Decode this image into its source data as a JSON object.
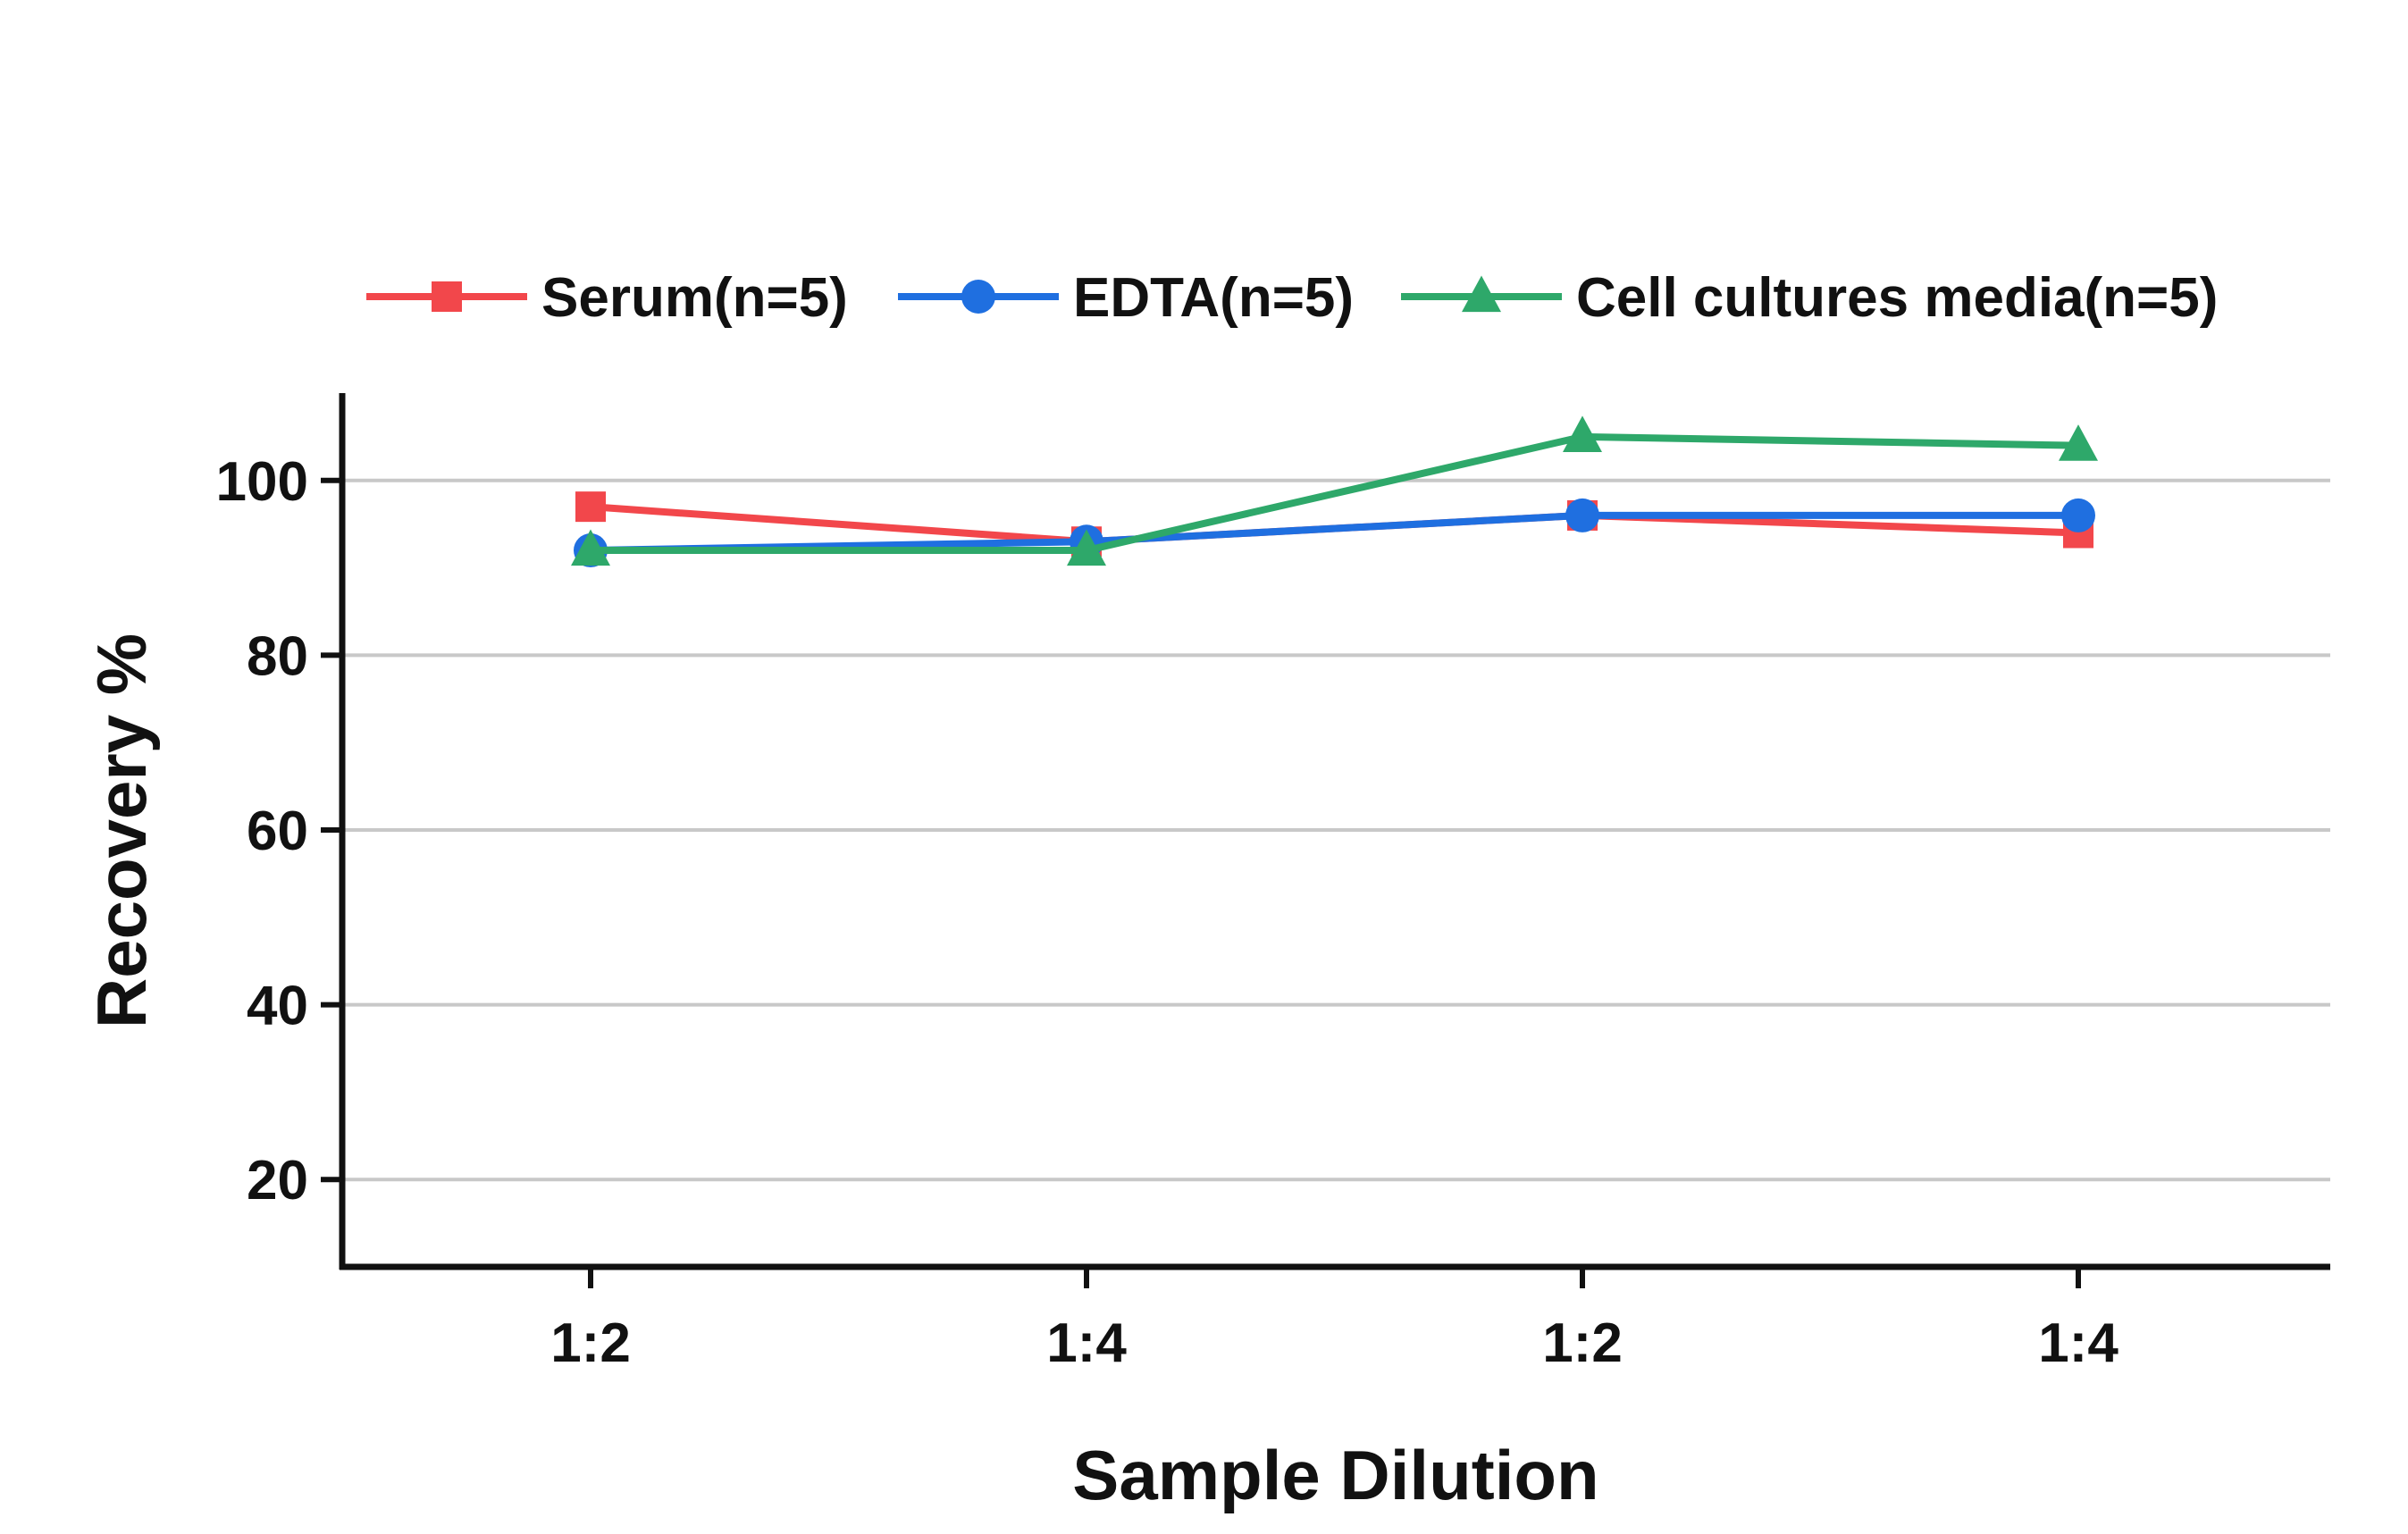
{
  "chart_data": {
    "type": "line",
    "categories": [
      "1:2",
      "1:4",
      "1:2",
      "1:4"
    ],
    "series": [
      {
        "name": "Serum(n=5)",
        "values": [
          97,
          93,
          96,
          94
        ],
        "color": "#f2474b",
        "marker": "square"
      },
      {
        "name": "EDTA(n=5)",
        "values": [
          92,
          93,
          96,
          96
        ],
        "color": "#1f6fe0",
        "marker": "circle"
      },
      {
        "name": "Cell cultures media(n=5)",
        "values": [
          92,
          92,
          105,
          104
        ],
        "color": "#2ea86a",
        "marker": "triangle"
      }
    ],
    "xlabel": "Sample Dilution",
    "ylabel": "Recovery %",
    "ylim": [
      10,
      110
    ],
    "yticks": [
      20,
      40,
      60,
      80,
      100
    ],
    "grid": true,
    "legend_position": "top"
  }
}
